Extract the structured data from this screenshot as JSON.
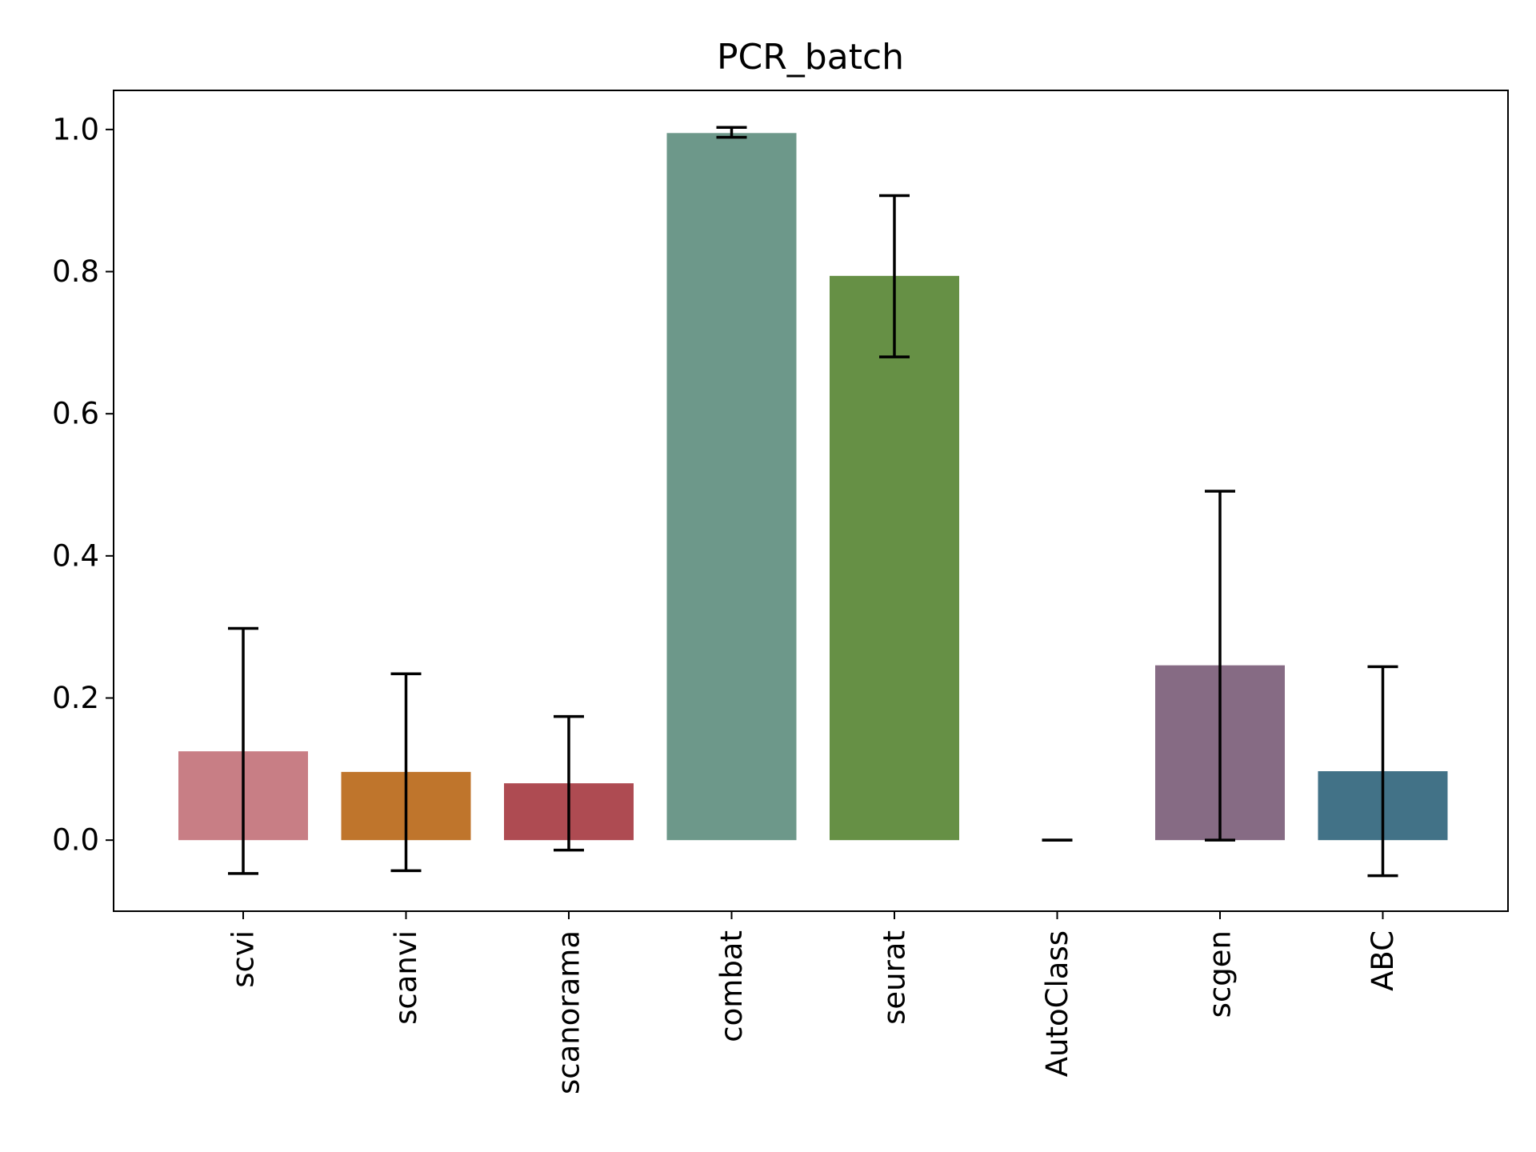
{
  "chart_data": {
    "type": "bar",
    "title": "PCR_batch",
    "xlabel": "",
    "ylabel": "",
    "categories": [
      "scvi",
      "scanvi",
      "scanorama",
      "combat",
      "seurat",
      "AutoClass",
      "scgen",
      "ABC"
    ],
    "values": [
      0.125,
      0.096,
      0.08,
      0.995,
      0.794,
      0.0,
      0.246,
      0.097
    ],
    "error_low": [
      -0.047,
      -0.043,
      -0.014,
      0.989,
      0.68,
      0.0,
      0.0,
      -0.05
    ],
    "error_high": [
      0.298,
      0.234,
      0.174,
      1.003,
      0.907,
      0.0,
      0.491,
      0.244
    ],
    "colors": [
      "#c87e85",
      "#bf752c",
      "#ae4b52",
      "#6d988a",
      "#669045",
      "#8e7ba0",
      "#866b84",
      "#427287"
    ],
    "ylim": [
      -0.1,
      1.055
    ],
    "yticks": [
      "0.0",
      "0.2",
      "0.4",
      "0.6",
      "0.8",
      "1.0"
    ],
    "grid": false,
    "legend": "none"
  }
}
